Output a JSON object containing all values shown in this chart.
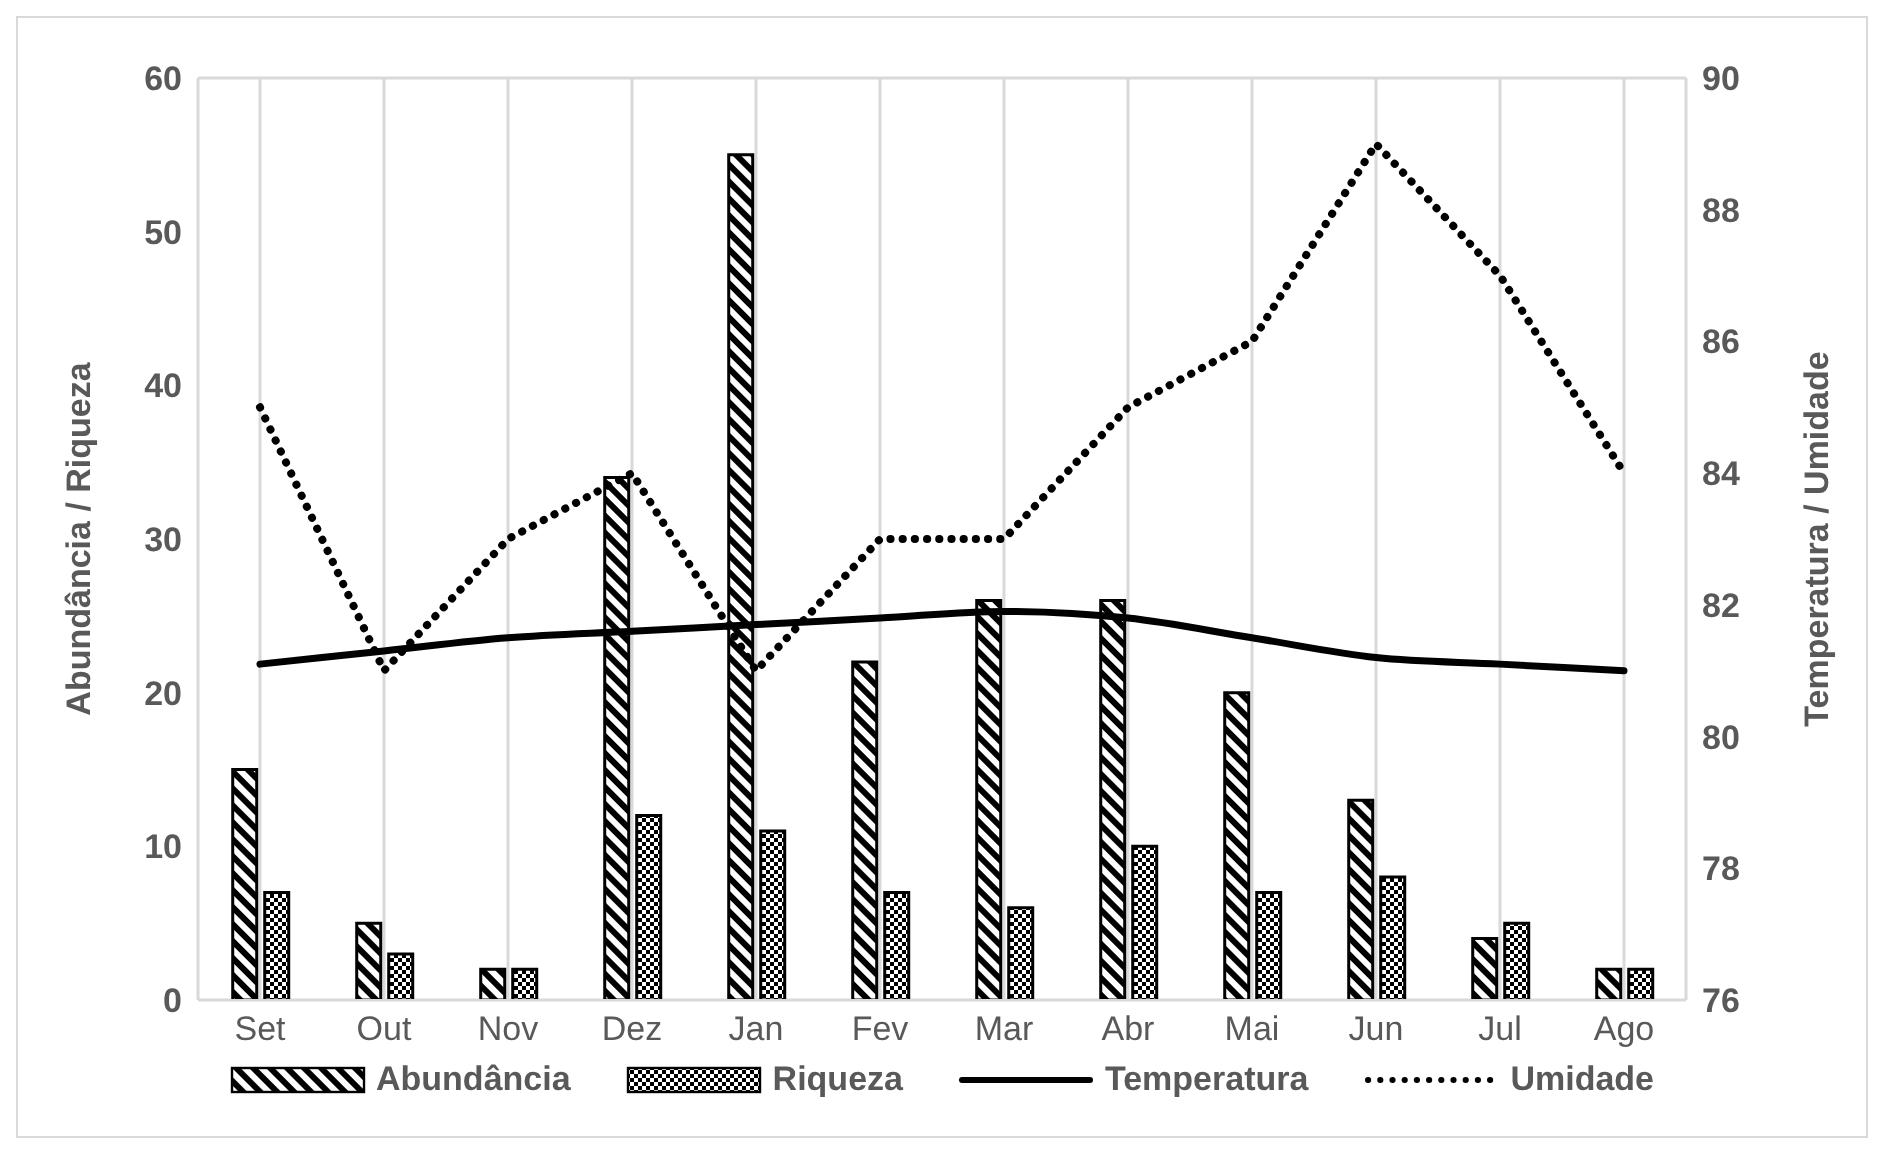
{
  "chart_data": {
    "type": "bar",
    "categories": [
      "Set",
      "Out",
      "Nov",
      "Dez",
      "Jan",
      "Fev",
      "Mar",
      "Abr",
      "Mai",
      "Jun",
      "Jul",
      "Ago"
    ],
    "ylabel": "Abundância / Riqueza",
    "y2label": "Temperatura / Umidade",
    "ylim": [
      0,
      60
    ],
    "yticks": [
      0,
      10,
      20,
      30,
      40,
      50,
      60
    ],
    "y2lim": [
      76,
      90
    ],
    "y2ticks": [
      76,
      78,
      80,
      82,
      84,
      86,
      88,
      90
    ],
    "grid": true,
    "legend": "bottom",
    "marker": "none",
    "series": [
      {
        "name": "Abundância",
        "color": "#000000",
        "values": [
          15,
          5,
          2,
          34,
          55,
          22,
          26,
          26,
          20,
          13,
          4,
          2
        ]
      },
      {
        "name": "Riqueza",
        "color": "#000000",
        "values": [
          7,
          3,
          2,
          12,
          11,
          7,
          6,
          10,
          7,
          8,
          5,
          2
        ]
      },
      {
        "name": "Temperatura",
        "type": "line",
        "axis": "y2",
        "line_style": "solid",
        "color": "#000000",
        "values": [
          81.1,
          81.3,
          81.5,
          81.6,
          81.7,
          81.8,
          81.9,
          81.8,
          81.5,
          81.2,
          81.1,
          81.0
        ]
      },
      {
        "name": "Umidade",
        "type": "line",
        "axis": "y2",
        "line_style": "dotted",
        "color": "#000000",
        "values": [
          85,
          81,
          83,
          84,
          81,
          83,
          83,
          85,
          86,
          89,
          87,
          84
        ]
      }
    ]
  }
}
